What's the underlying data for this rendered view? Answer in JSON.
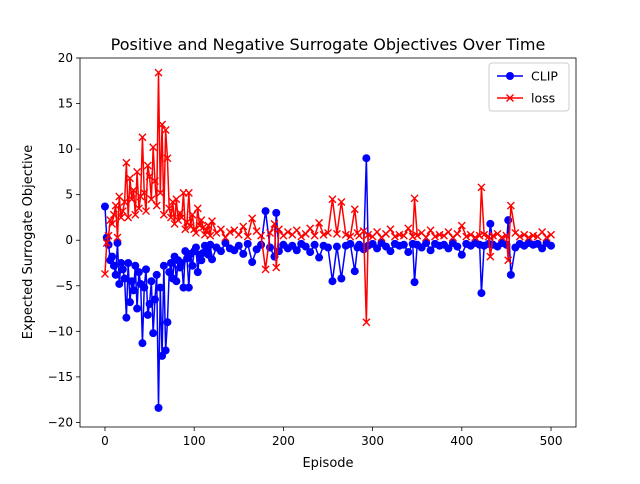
{
  "chart_data": {
    "type": "line",
    "title": "Positive and Negative Surrogate Objectives Over Time",
    "xlabel": "Episode",
    "ylabel": "Expected Surrogate Objective",
    "xlim": [
      -28,
      528
    ],
    "ylim": [
      -20.5,
      20
    ],
    "xticks": [
      0,
      100,
      200,
      300,
      400,
      500
    ],
    "yticks": [
      -20,
      -15,
      -10,
      -5,
      0,
      5,
      10,
      15,
      20
    ],
    "grid": false,
    "legend_position": "top-right",
    "series": [
      {
        "name": "CLIP",
        "color": "#0000ff",
        "marker": "circle",
        "x": [
          0,
          2,
          4,
          6,
          8,
          10,
          12,
          14,
          16,
          18,
          20,
          22,
          24,
          26,
          28,
          30,
          32,
          34,
          36,
          38,
          40,
          42,
          44,
          46,
          48,
          50,
          52,
          54,
          56,
          58,
          60,
          62,
          64,
          66,
          68,
          70,
          72,
          74,
          76,
          78,
          80,
          82,
          84,
          86,
          88,
          90,
          92,
          94,
          96,
          98,
          100,
          102,
          104,
          106,
          108,
          110,
          112,
          114,
          116,
          118,
          120,
          125,
          130,
          135,
          140,
          145,
          150,
          155,
          160,
          165,
          170,
          175,
          180,
          185,
          190,
          192,
          195,
          200,
          205,
          210,
          215,
          220,
          225,
          230,
          235,
          240,
          245,
          250,
          255,
          260,
          265,
          270,
          275,
          280,
          283,
          285,
          290,
          293,
          295,
          300,
          305,
          310,
          315,
          320,
          325,
          330,
          335,
          340,
          345,
          347,
          350,
          355,
          360,
          365,
          370,
          375,
          380,
          385,
          390,
          395,
          400,
          405,
          410,
          415,
          420,
          422,
          425,
          430,
          432,
          435,
          440,
          445,
          450,
          452,
          455,
          460,
          465,
          470,
          475,
          480,
          485,
          490,
          495,
          500
        ],
        "y": [
          3.7,
          0.3,
          -0.5,
          -2.2,
          -1.8,
          -2.8,
          -3.8,
          -0.3,
          -4.8,
          -2.5,
          -3.2,
          -4.2,
          -8.5,
          -2.5,
          -6.8,
          -4.5,
          -5.5,
          -2.8,
          -7.5,
          -3.5,
          -4.8,
          -11.3,
          -5.2,
          -3.2,
          -8.2,
          -7,
          -4.5,
          -10.2,
          -6.5,
          -3.8,
          -18.4,
          -5.2,
          -12.7,
          -2.8,
          -12.1,
          -9,
          -3.5,
          -2.5,
          -4.2,
          -1.8,
          -4.5,
          -2.2,
          -3,
          -2.5,
          -5.2,
          -1.2,
          -2,
          -5.2,
          -1.5,
          -2.8,
          -1.2,
          -0.8,
          -3.5,
          -1.6,
          -2.2,
          -1.4,
          -0.6,
          -1.1,
          -1.6,
          -0.5,
          -2.1,
          -0.8,
          -1.2,
          -0.3,
          -0.9,
          -1.1,
          -0.6,
          -1.5,
          -0.4,
          -2.4,
          -1.0,
          -0.5,
          3.2,
          -0.8,
          -1.8,
          3.0,
          -1.2,
          -0.5,
          -0.9,
          -0.6,
          -1.1,
          -0.4,
          -0.7,
          -1.3,
          -0.5,
          -1.9,
          -0.6,
          -0.8,
          -4.5,
          -0.7,
          -4.2,
          -0.6,
          -0.4,
          -3.4,
          -0.8,
          -0.5,
          -1.0,
          9.0,
          -0.6,
          -0.4,
          -0.9,
          -0.3,
          -0.7,
          -1.2,
          -0.4,
          -0.6,
          -0.5,
          -1.3,
          -0.4,
          -4.6,
          -0.5,
          -0.8,
          -0.3,
          -1.1,
          -0.4,
          -0.6,
          -0.5,
          -0.9,
          -0.3,
          -0.7,
          -1.6,
          -0.4,
          -0.6,
          -0.3,
          -0.5,
          -5.8,
          -0.6,
          -0.4,
          1.8,
          -0.5,
          -0.7,
          -0.3,
          -0.5,
          2.2,
          -3.8,
          -0.8,
          -0.4,
          -0.6,
          -0.3,
          -0.5,
          -0.4,
          -0.9,
          -0.3,
          -0.6
        ]
      },
      {
        "name": "loss",
        "color": "#ff0000",
        "marker": "x",
        "x": [
          0,
          2,
          4,
          6,
          8,
          10,
          12,
          14,
          16,
          18,
          20,
          22,
          24,
          26,
          28,
          30,
          32,
          34,
          36,
          38,
          40,
          42,
          44,
          46,
          48,
          50,
          52,
          54,
          56,
          58,
          60,
          62,
          64,
          66,
          68,
          70,
          72,
          74,
          76,
          78,
          80,
          82,
          84,
          86,
          88,
          90,
          92,
          94,
          96,
          98,
          100,
          102,
          104,
          106,
          108,
          110,
          112,
          114,
          116,
          118,
          120,
          125,
          130,
          135,
          140,
          145,
          150,
          155,
          160,
          165,
          170,
          175,
          180,
          185,
          190,
          192,
          195,
          200,
          205,
          210,
          215,
          220,
          225,
          230,
          235,
          240,
          245,
          250,
          255,
          260,
          265,
          270,
          275,
          280,
          283,
          285,
          290,
          293,
          295,
          300,
          305,
          310,
          315,
          320,
          325,
          330,
          335,
          340,
          345,
          347,
          350,
          355,
          360,
          365,
          370,
          375,
          380,
          385,
          390,
          395,
          400,
          405,
          410,
          415,
          420,
          422,
          425,
          430,
          432,
          435,
          440,
          445,
          450,
          452,
          455,
          460,
          465,
          470,
          475,
          480,
          485,
          490,
          495,
          500
        ],
        "y": [
          -3.7,
          -0.3,
          0.5,
          2.2,
          1.8,
          2.8,
          3.8,
          0.3,
          4.8,
          2.5,
          3.2,
          4.2,
          8.5,
          2.5,
          6.8,
          4.5,
          5.5,
          2.8,
          7.5,
          3.5,
          4.8,
          11.3,
          5.2,
          3.2,
          8.2,
          7,
          4.5,
          10.2,
          6.5,
          3.8,
          18.4,
          5.2,
          12.7,
          2.8,
          12.1,
          9,
          3.5,
          2.5,
          4.2,
          1.8,
          4.5,
          2.2,
          3,
          2.5,
          5.2,
          1.2,
          2,
          5.2,
          1.5,
          2.8,
          1.2,
          0.8,
          3.5,
          1.6,
          2.2,
          1.4,
          0.6,
          1.1,
          1.6,
          0.5,
          2.1,
          0.8,
          1.2,
          0.3,
          0.9,
          1.1,
          0.6,
          1.5,
          0.4,
          2.4,
          1.0,
          0.5,
          -3.2,
          0.8,
          1.8,
          -3.0,
          1.2,
          0.5,
          0.9,
          0.6,
          1.1,
          0.4,
          0.7,
          1.3,
          0.5,
          1.9,
          0.6,
          0.8,
          4.5,
          0.7,
          4.2,
          0.6,
          0.4,
          3.4,
          0.8,
          0.5,
          1.0,
          -9.0,
          0.6,
          0.4,
          0.9,
          0.3,
          0.7,
          1.2,
          0.4,
          0.6,
          0.5,
          1.3,
          0.4,
          4.6,
          0.5,
          0.8,
          0.3,
          1.1,
          0.4,
          0.6,
          0.5,
          0.9,
          0.3,
          0.7,
          1.6,
          0.4,
          0.6,
          0.3,
          0.5,
          5.8,
          0.6,
          0.4,
          -1.8,
          0.5,
          0.7,
          0.3,
          0.5,
          -2.2,
          3.8,
          0.8,
          0.4,
          0.6,
          0.3,
          0.5,
          0.4,
          0.9,
          0.3,
          0.6
        ]
      }
    ]
  }
}
